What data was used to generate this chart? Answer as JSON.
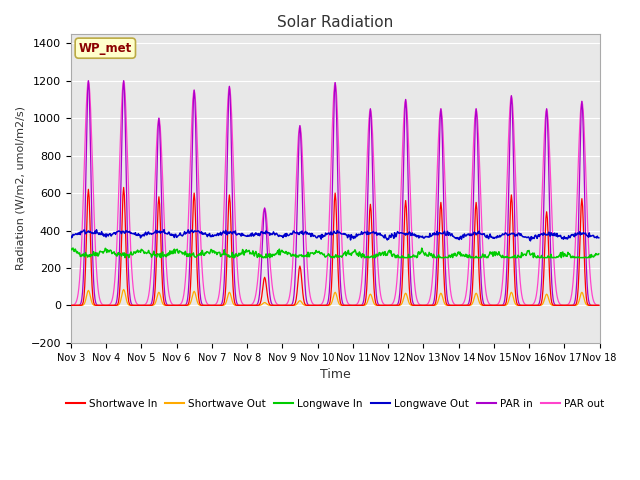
{
  "title": "Solar Radiation",
  "ylabel": "Radiation (W/m2, umol/m2/s)",
  "xlabel": "Time",
  "ylim": [
    -200,
    1450
  ],
  "yticks": [
    -200,
    0,
    200,
    400,
    600,
    800,
    1000,
    1200,
    1400
  ],
  "xtick_labels": [
    "Nov 3",
    "Nov 4",
    "Nov 5",
    "Nov 6",
    "Nov 7",
    "Nov 8",
    "Nov 9",
    "Nov 10",
    "Nov 11",
    "Nov 12",
    "Nov 13",
    "Nov 14",
    "Nov 15",
    "Nov 16",
    "Nov 17",
    "Nov 18"
  ],
  "station_label": "WP_met",
  "ax_bg_color": "#e8e8e8",
  "fig_bg_color": "#ffffff",
  "colors": {
    "shortwave_in": "#ff0000",
    "shortwave_out": "#ffaa00",
    "longwave_in": "#00cc00",
    "longwave_out": "#0000cc",
    "par_in": "#aa00cc",
    "par_out": "#ff44cc"
  },
  "legend": [
    {
      "label": "Shortwave In",
      "color": "#ff0000"
    },
    {
      "label": "Shortwave Out",
      "color": "#ffaa00"
    },
    {
      "label": "Longwave In",
      "color": "#00cc00"
    },
    {
      "label": "Longwave Out",
      "color": "#0000cc"
    },
    {
      "label": "PAR in",
      "color": "#aa00cc"
    },
    {
      "label": "PAR out",
      "color": "#ff44cc"
    }
  ],
  "sw_in_peaks": [
    620,
    630,
    580,
    600,
    590,
    150,
    210,
    600,
    540,
    560,
    550,
    550,
    590,
    500,
    570
  ],
  "sw_out_peaks": [
    80,
    85,
    70,
    75,
    70,
    15,
    25,
    70,
    60,
    65,
    65,
    65,
    70,
    60,
    70
  ],
  "par_in_peaks": [
    1200,
    1200,
    1000,
    1150,
    1170,
    520,
    960,
    1190,
    1050,
    1100,
    1050,
    1050,
    1120,
    1050,
    1090
  ],
  "par_out_peaks": [
    1200,
    1200,
    1000,
    1150,
    1170,
    520,
    960,
    1190,
    1050,
    1100,
    1050,
    1050,
    1120,
    1050,
    1090
  ],
  "lw_in_base": 300,
  "lw_out_base": 370,
  "sw_peak_sigma": 0.055,
  "par_peak_sigma": 0.07,
  "par_out_sigma": 0.12
}
